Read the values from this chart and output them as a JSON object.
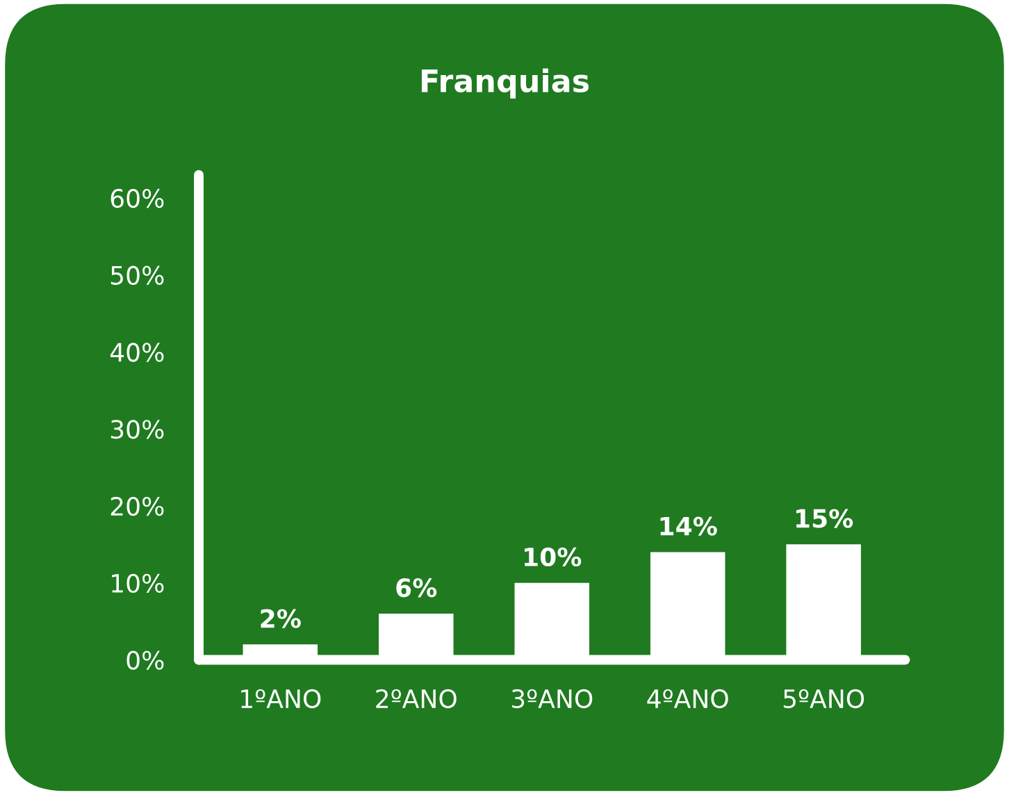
{
  "chart_data": {
    "type": "bar",
    "title": "Franquias",
    "categories": [
      "1ºANO",
      "2ºANO",
      "3ºANO",
      "4ºANO",
      "5ºANO"
    ],
    "values": [
      2,
      6,
      10,
      14,
      15
    ],
    "color": "#ffffff",
    "ylim": [
      0,
      63
    ],
    "yticks": [
      {
        "value": 0,
        "label": "0%"
      },
      {
        "value": 10,
        "label": "10%"
      },
      {
        "value": 20,
        "label": "20%"
      },
      {
        "value": 30,
        "label": "30%"
      },
      {
        "value": 40,
        "label": "40%"
      },
      {
        "value": 50,
        "label": "50%"
      },
      {
        "value": 60,
        "label": "60%"
      }
    ],
    "value_labels": [
      "2%",
      "6%",
      "10%",
      "14%",
      "15%"
    ],
    "grid": false,
    "legend": false
  }
}
